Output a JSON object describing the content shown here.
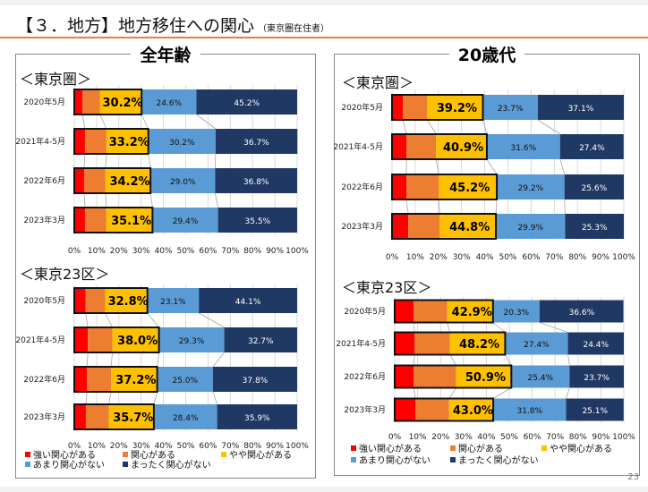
{
  "header": {
    "title": "【３．地方】地方移住への関心",
    "subtitle": "（東京圏在住者）"
  },
  "panels": [
    {
      "title": "全年齢"
    },
    {
      "title": "20歳代"
    }
  ],
  "page_number": "23",
  "colors": {
    "strong": "#ff0000",
    "some": "#ed7d31",
    "slight": "#ffc000",
    "little": "#5b9bd5",
    "none": "#1f3864",
    "accent": "#ed7d31"
  },
  "chart_data": [
    {
      "type": "bar",
      "stacked": "horizontal-100%",
      "panel": "全年齢",
      "title": "＜東京圏＞",
      "categories": [
        "2020年5月",
        "2021年4-5月",
        "2022年6月",
        "2023年3月"
      ],
      "series": [
        {
          "name": "強い関心がある",
          "values": [
            3.6,
            4.8,
            4.4,
            4.8
          ]
        },
        {
          "name": "関心がある",
          "values": [
            8.0,
            9.6,
            9.6,
            9.6
          ]
        },
        {
          "name": "やや関心がある",
          "values": [
            18.6,
            18.8,
            20.2,
            20.7
          ]
        },
        {
          "name": "あまり関心がない",
          "values": [
            24.6,
            30.2,
            29.0,
            29.4
          ]
        },
        {
          "name": "まったく関心がない",
          "values": [
            45.2,
            36.7,
            36.8,
            35.5
          ]
        }
      ],
      "interest_total": [
        30.2,
        33.2,
        34.2,
        35.1
      ],
      "labels": {
        "interest_total": [
          "30.2%",
          "33.2%",
          "34.2%",
          "35.1%"
        ],
        "little": [
          "24.6%",
          "30.2%",
          "29.0%",
          "29.4%"
        ],
        "none": [
          "45.2%",
          "36.7%",
          "36.8%",
          "35.5%"
        ]
      },
      "xticks": [
        "0%",
        "10%",
        "20%",
        "30%",
        "40%",
        "50%",
        "60%",
        "70%",
        "80%",
        "90%",
        "100%"
      ],
      "xlim": [
        0,
        100
      ],
      "grid": true
    },
    {
      "type": "bar",
      "stacked": "horizontal-100%",
      "panel": "全年齢",
      "title": "＜東京23区＞",
      "categories": [
        "2020年5月",
        "2021年4-5月",
        "2022年6月",
        "2023年3月"
      ],
      "series": [
        {
          "name": "強い関心がある",
          "values": [
            5.1,
            6.1,
            5.7,
            5.2
          ]
        },
        {
          "name": "関心がある",
          "values": [
            8.8,
            11.0,
            10.8,
            10.3
          ]
        },
        {
          "name": "やや関心がある",
          "values": [
            18.9,
            20.9,
            20.7,
            20.2
          ]
        },
        {
          "name": "あまり関心がない",
          "values": [
            23.1,
            29.3,
            25.0,
            28.4
          ]
        },
        {
          "name": "まったく関心がない",
          "values": [
            44.1,
            32.7,
            37.8,
            35.9
          ]
        }
      ],
      "interest_total": [
        32.8,
        38.0,
        37.2,
        35.7
      ],
      "labels": {
        "interest_total": [
          "32.8%",
          "38.0%",
          "37.2%",
          "35.7%"
        ],
        "little": [
          "23.1%",
          "29.3%",
          "25.0%",
          "28.4%"
        ],
        "none": [
          "44.1%",
          "32.7%",
          "37.8%",
          "35.9%"
        ]
      },
      "xticks": [
        "0%",
        "10%",
        "20%",
        "30%",
        "40%",
        "50%",
        "60%",
        "70%",
        "80%",
        "90%",
        "100%"
      ],
      "xlim": [
        0,
        100
      ],
      "grid": true,
      "legend": "bottom"
    },
    {
      "type": "bar",
      "stacked": "horizontal-100%",
      "panel": "20歳代",
      "title": "＜東京圏＞",
      "categories": [
        "2020年5月",
        "2021年4-5月",
        "2022年6月",
        "2023年3月"
      ],
      "series": [
        {
          "name": "強い関心がある",
          "values": [
            4.7,
            6.2,
            6.2,
            7.0
          ]
        },
        {
          "name": "関心がある",
          "values": [
            10.5,
            12.8,
            14.0,
            13.6
          ]
        },
        {
          "name": "やや関心がある",
          "values": [
            24.0,
            21.9,
            25.0,
            24.2
          ]
        },
        {
          "name": "あまり関心がない",
          "values": [
            23.7,
            31.6,
            29.2,
            29.9
          ]
        },
        {
          "name": "まったく関心がない",
          "values": [
            37.1,
            27.4,
            25.6,
            25.3
          ]
        }
      ],
      "interest_total": [
        39.2,
        40.9,
        45.2,
        44.8
      ],
      "labels": {
        "interest_total": [
          "39.2%",
          "40.9%",
          "45.2%",
          "44.8%"
        ],
        "little": [
          "23.7%",
          "31.6%",
          "29.2%",
          "29.9%"
        ],
        "none": [
          "37.1%",
          "27.4%",
          "25.6%",
          "25.3%"
        ]
      },
      "xticks": [
        "0%",
        "10%",
        "20%",
        "30%",
        "40%",
        "50%",
        "60%",
        "70%",
        "80%",
        "90%",
        "100%"
      ],
      "xlim": [
        0,
        100
      ],
      "grid": true
    },
    {
      "type": "bar",
      "stacked": "horizontal-100%",
      "panel": "20歳代",
      "title": "＜東京23区＞",
      "categories": [
        "2020年5月",
        "2021年4-5月",
        "2022年6月",
        "2023年3月"
      ],
      "series": [
        {
          "name": "強い関心がある",
          "values": [
            8.3,
            8.7,
            8.3,
            9.1
          ]
        },
        {
          "name": "関心がある",
          "values": [
            14.6,
            15.4,
            18.5,
            14.6
          ]
        },
        {
          "name": "やや関心がある",
          "values": [
            20.0,
            24.1,
            24.1,
            19.3
          ]
        },
        {
          "name": "あまり関心がない",
          "values": [
            20.3,
            27.4,
            25.4,
            31.8
          ]
        },
        {
          "name": "まったく関心がない",
          "values": [
            36.6,
            24.4,
            23.7,
            25.1
          ]
        }
      ],
      "interest_total": [
        42.9,
        48.2,
        50.9,
        43.0
      ],
      "labels": {
        "interest_total": [
          "42.9%",
          "48.2%",
          "50.9%",
          "43.0%"
        ],
        "little": [
          "20.3%",
          "27.4%",
          "25.4%",
          "31.8%"
        ],
        "none": [
          "36.6%",
          "24.4%",
          "23.7%",
          "25.1%"
        ]
      },
      "xticks": [
        "0%",
        "10%",
        "20%",
        "30%",
        "40%",
        "50%",
        "60%",
        "70%",
        "80%",
        "90%",
        "100%"
      ],
      "xlim": [
        0,
        100
      ],
      "grid": true,
      "legend": "bottom"
    }
  ]
}
